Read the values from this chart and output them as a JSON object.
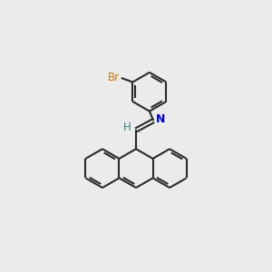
{
  "background_color": "#ebebeb",
  "bond_color": "#2a2a2a",
  "nitrogen_color": "#0000cc",
  "bromine_color": "#cc7700",
  "h_color": "#3a8080",
  "line_width": 1.5,
  "dbo": 0.12,
  "figsize": [
    3.0,
    3.0
  ],
  "dpi": 100,
  "xlim": [
    0,
    10
  ],
  "ylim": [
    0,
    10
  ]
}
